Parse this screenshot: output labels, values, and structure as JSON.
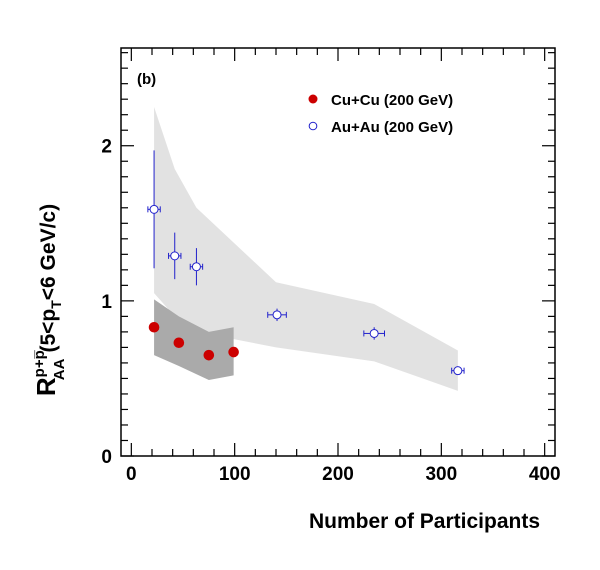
{
  "chart_data": {
    "type": "scatter",
    "panel_label": "(b)",
    "xlabel": "Number of Participants",
    "ylabel": {
      "main": "R",
      "superscript": "p+p̅",
      "subscript": "AA",
      "range_prefix": "(5<p",
      "range_sub": "T",
      "range_suffix": "<6 GeV/c)"
    },
    "xlim": [
      -10,
      410
    ],
    "ylim": [
      0,
      2.63
    ],
    "xticks": [
      0,
      100,
      200,
      300,
      400
    ],
    "yticks": [
      0,
      1,
      2
    ],
    "grid": false,
    "legend_placement": "top-right",
    "series": [
      {
        "name": "Cu+Cu (200 GeV)",
        "marker": "filled-circle",
        "color": "#cc0000",
        "points": [
          {
            "x": 22,
            "y": 0.83
          },
          {
            "x": 46,
            "y": 0.73
          },
          {
            "x": 75,
            "y": 0.65
          },
          {
            "x": 99,
            "y": 0.67
          }
        ],
        "systematic_band": {
          "color": "#aaaaaa",
          "upper": [
            [
              22,
              1.01
            ],
            [
              46,
              0.9
            ],
            [
              75,
              0.8
            ],
            [
              99,
              0.83
            ]
          ],
          "lower": [
            [
              99,
              0.52
            ],
            [
              75,
              0.49
            ],
            [
              46,
              0.58
            ],
            [
              22,
              0.65
            ]
          ]
        }
      },
      {
        "name": "Au+Au (200 GeV)",
        "marker": "open-circle",
        "color": "#2222cc",
        "points": [
          {
            "x": 22,
            "y": 1.59,
            "yerr": 0.38,
            "xerr": 6
          },
          {
            "x": 42,
            "y": 1.29,
            "yerr": 0.15,
            "xerr": 6
          },
          {
            "x": 63,
            "y": 1.22,
            "yerr": 0.12,
            "xerr": 6
          },
          {
            "x": 141,
            "y": 0.91,
            "yerr": 0.04,
            "xerr": 9
          },
          {
            "x": 235,
            "y": 0.79,
            "yerr": 0.04,
            "xerr": 10
          },
          {
            "x": 316,
            "y": 0.55,
            "yerr": 0.02,
            "xerr": 6
          }
        ],
        "systematic_band": {
          "color": "#e2e2e2",
          "upper": [
            [
              22,
              2.25
            ],
            [
              42,
              1.85
            ],
            [
              63,
              1.6
            ],
            [
              140,
              1.12
            ],
            [
              235,
              0.98
            ],
            [
              316,
              0.68
            ]
          ],
          "lower": [
            [
              316,
              0.42
            ],
            [
              235,
              0.61
            ],
            [
              140,
              0.7
            ],
            [
              63,
              0.8
            ],
            [
              42,
              0.9
            ],
            [
              22,
              1.05
            ]
          ]
        }
      }
    ]
  }
}
